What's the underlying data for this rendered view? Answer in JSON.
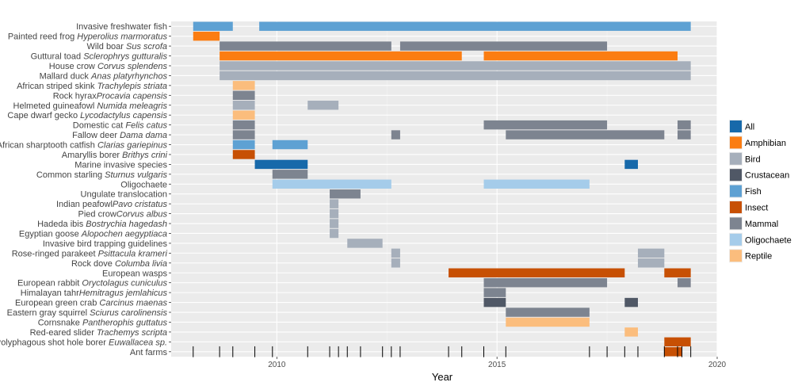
{
  "chart_data": {
    "type": "gantt",
    "xlabel": "Year",
    "xticks": [
      2010,
      2015,
      2020
    ],
    "xlim": [
      2007.6,
      2020
    ],
    "grid": true,
    "legend_position": "right",
    "colors": {
      "All": "#1769aa",
      "Amphibian": "#fb7d12",
      "Bird": "#a6afbb",
      "Crustacean": "#505866",
      "Fish": "#5ea1d3",
      "Insect": "#c75004",
      "Mammal": "#7d8490",
      "Oligochaete": "#a5ccea",
      "Reptile": "#fbbd7d"
    },
    "categories": [
      {
        "label": "Invasive freshwater fish",
        "prefix": "Invasive freshwater fish",
        "italic": ""
      },
      {
        "label": "Painted reed frog Hyperolius marmoratus",
        "prefix": "Painted reed frog ",
        "italic": "Hyperolius marmoratus"
      },
      {
        "label": "Wild boar Sus scrofa",
        "prefix": "Wild boar ",
        "italic": "Sus scrofa"
      },
      {
        "label": "Guttural toad Sclerophrys gutturalis",
        "prefix": "Guttural toad ",
        "italic": "Sclerophrys gutturalis"
      },
      {
        "label": "House crow Corvus splendens",
        "prefix": "House crow ",
        "italic": "Corvus splendens"
      },
      {
        "label": "Mallard duck Anas platyrhynchos",
        "prefix": "Mallard duck ",
        "italic": "Anas platyrhynchos"
      },
      {
        "label": "African striped skink Trachylepis striata",
        "prefix": "African striped skink ",
        "italic": "Trachylepis striata"
      },
      {
        "label": "Rock hyraxProcavia capensis",
        "prefix": "Rock hyrax",
        "italic": "Procavia capensis"
      },
      {
        "label": "Helmeted guineafowl Numida meleagris",
        "prefix": "Helmeted guineafowl ",
        "italic": "Numida meleagris"
      },
      {
        "label": "Cape dwarf gecko Lycodactylus capensis",
        "prefix": "Cape dwarf gecko ",
        "italic": "Lycodactylus capensis"
      },
      {
        "label": "Domestic cat Felis catus",
        "prefix": "Domestic cat ",
        "italic": "Felis catus"
      },
      {
        "label": "Fallow deer Dama dama",
        "prefix": "Fallow deer ",
        "italic": "Dama dama"
      },
      {
        "label": "African sharptooth catfish Clarias gariepinus",
        "prefix": "African sharptooth catfish ",
        "italic": "Clarias gariepinus"
      },
      {
        "label": "Amaryllis borer Brithys crini",
        "prefix": "Amaryllis borer ",
        "italic": "Brithys crini"
      },
      {
        "label": "Marine invasive species",
        "prefix": "Marine invasive species",
        "italic": ""
      },
      {
        "label": "Common starling Sturnus vulgaris",
        "prefix": "Common starling ",
        "italic": "Sturnus vulgaris"
      },
      {
        "label": "Oligochaete",
        "prefix": "Oligochaete",
        "italic": ""
      },
      {
        "label": "Ungulate translocation",
        "prefix": "Ungulate translocation",
        "italic": ""
      },
      {
        "label": "Indian peafowlPavo cristatus",
        "prefix": "Indian peafowl",
        "italic": "Pavo cristatus"
      },
      {
        "label": "Pied crowCorvus albus",
        "prefix": "Pied crow",
        "italic": "Corvus albus"
      },
      {
        "label": "Hadeda ibis Bostrychia hagedash",
        "prefix": "Hadeda ibis ",
        "italic": "Bostrychia hagedash"
      },
      {
        "label": "Egyptian goose Alopochen aegyptiaca",
        "prefix": "Egyptian goose ",
        "italic": "Alopochen aegyptiaca"
      },
      {
        "label": "Invasive bird trapping guidelines",
        "prefix": "Invasive bird trapping guidelines",
        "italic": ""
      },
      {
        "label": "Rose-ringed parakeet Psittacula krameri",
        "prefix": "Rose-ringed parakeet ",
        "italic": "Psittacula krameri"
      },
      {
        "label": "Rock dove Columba livia",
        "prefix": "Rock dove ",
        "italic": "Columba livia"
      },
      {
        "label": "European wasps",
        "prefix": "European wasps",
        "italic": ""
      },
      {
        "label": "European rabbit Oryctolagus cuniculus",
        "prefix": "European rabbit ",
        "italic": "Oryctolagus cuniculus"
      },
      {
        "label": "Himalayan tahrHemitragus jemlahicus",
        "prefix": "Himalayan tahr",
        "italic": "Hemitragus jemlahicus"
      },
      {
        "label": "European green crab Carcinus maenas",
        "prefix": "European green crab ",
        "italic": "Carcinus maenas"
      },
      {
        "label": "Eastern gray squirrel Sciurus carolinensis",
        "prefix": "Eastern gray squirrel ",
        "italic": "Sciurus carolinensis"
      },
      {
        "label": "Cornsnake Pantherophis guttatus",
        "prefix": "Cornsnake ",
        "italic": "Pantherophis guttatus"
      },
      {
        "label": "Red-eared slider Trachemys scripta",
        "prefix": "Red-eared slider ",
        "italic": "Trachemys scripta"
      },
      {
        "label": "Polyphagous shot hole borer Euwallacea sp.",
        "prefix": "Polyphagous shot hole borer ",
        "italic": "Euwallacea sp."
      },
      {
        "label": "Ant farms",
        "prefix": "Ant farms",
        "italic": ""
      }
    ],
    "bars": [
      {
        "row": 0,
        "start": 2008.1,
        "end": 2009.0,
        "group": "Fish"
      },
      {
        "row": 0,
        "start": 2009.6,
        "end": 2019.4,
        "group": "Fish"
      },
      {
        "row": 1,
        "start": 2008.1,
        "end": 2008.7,
        "group": "Amphibian"
      },
      {
        "row": 2,
        "start": 2008.7,
        "end": 2012.6,
        "group": "Mammal"
      },
      {
        "row": 2,
        "start": 2012.8,
        "end": 2017.5,
        "group": "Mammal"
      },
      {
        "row": 3,
        "start": 2008.7,
        "end": 2014.2,
        "group": "Amphibian"
      },
      {
        "row": 3,
        "start": 2014.7,
        "end": 2019.1,
        "group": "Amphibian"
      },
      {
        "row": 4,
        "start": 2008.7,
        "end": 2019.4,
        "group": "Bird"
      },
      {
        "row": 5,
        "start": 2008.7,
        "end": 2019.4,
        "group": "Bird"
      },
      {
        "row": 6,
        "start": 2009.0,
        "end": 2009.5,
        "group": "Reptile"
      },
      {
        "row": 7,
        "start": 2009.0,
        "end": 2009.5,
        "group": "Mammal"
      },
      {
        "row": 8,
        "start": 2009.0,
        "end": 2009.5,
        "group": "Bird"
      },
      {
        "row": 8,
        "start": 2010.7,
        "end": 2011.4,
        "group": "Bird"
      },
      {
        "row": 9,
        "start": 2009.0,
        "end": 2009.5,
        "group": "Reptile"
      },
      {
        "row": 10,
        "start": 2009.0,
        "end": 2009.5,
        "group": "Mammal"
      },
      {
        "row": 10,
        "start": 2014.7,
        "end": 2017.5,
        "group": "Mammal"
      },
      {
        "row": 10,
        "start": 2019.1,
        "end": 2019.4,
        "group": "Mammal"
      },
      {
        "row": 11,
        "start": 2009.0,
        "end": 2009.5,
        "group": "Mammal"
      },
      {
        "row": 11,
        "start": 2012.6,
        "end": 2012.8,
        "group": "Mammal"
      },
      {
        "row": 11,
        "start": 2015.2,
        "end": 2018.8,
        "group": "Mammal"
      },
      {
        "row": 11,
        "start": 2019.1,
        "end": 2019.4,
        "group": "Mammal"
      },
      {
        "row": 12,
        "start": 2009.0,
        "end": 2009.5,
        "group": "Fish"
      },
      {
        "row": 12,
        "start": 2009.9,
        "end": 2010.7,
        "group": "Fish"
      },
      {
        "row": 13,
        "start": 2009.0,
        "end": 2009.5,
        "group": "Insect"
      },
      {
        "row": 14,
        "start": 2009.5,
        "end": 2010.7,
        "group": "All"
      },
      {
        "row": 14,
        "start": 2017.9,
        "end": 2018.2,
        "group": "All"
      },
      {
        "row": 15,
        "start": 2009.9,
        "end": 2010.7,
        "group": "Mammal"
      },
      {
        "row": 16,
        "start": 2009.9,
        "end": 2012.6,
        "group": "Oligochaete"
      },
      {
        "row": 16,
        "start": 2014.7,
        "end": 2017.1,
        "group": "Oligochaete"
      },
      {
        "row": 17,
        "start": 2011.2,
        "end": 2011.9,
        "group": "Mammal"
      },
      {
        "row": 18,
        "start": 2011.2,
        "end": 2011.4,
        "group": "Bird"
      },
      {
        "row": 19,
        "start": 2011.2,
        "end": 2011.4,
        "group": "Bird"
      },
      {
        "row": 20,
        "start": 2011.2,
        "end": 2011.4,
        "group": "Bird"
      },
      {
        "row": 21,
        "start": 2011.2,
        "end": 2011.4,
        "group": "Bird"
      },
      {
        "row": 22,
        "start": 2011.6,
        "end": 2012.4,
        "group": "Bird"
      },
      {
        "row": 23,
        "start": 2012.6,
        "end": 2012.8,
        "group": "Bird"
      },
      {
        "row": 23,
        "start": 2018.2,
        "end": 2018.8,
        "group": "Bird"
      },
      {
        "row": 24,
        "start": 2012.6,
        "end": 2012.8,
        "group": "Bird"
      },
      {
        "row": 24,
        "start": 2018.2,
        "end": 2018.8,
        "group": "Bird"
      },
      {
        "row": 25,
        "start": 2013.9,
        "end": 2017.9,
        "group": "Insect"
      },
      {
        "row": 25,
        "start": 2018.8,
        "end": 2019.4,
        "group": "Insect"
      },
      {
        "row": 26,
        "start": 2014.7,
        "end": 2017.5,
        "group": "Mammal"
      },
      {
        "row": 26,
        "start": 2019.1,
        "end": 2019.4,
        "group": "Mammal"
      },
      {
        "row": 27,
        "start": 2014.7,
        "end": 2015.2,
        "group": "Mammal"
      },
      {
        "row": 28,
        "start": 2014.7,
        "end": 2015.2,
        "group": "Crustacean"
      },
      {
        "row": 28,
        "start": 2017.9,
        "end": 2018.2,
        "group": "Crustacean"
      },
      {
        "row": 29,
        "start": 2015.2,
        "end": 2017.1,
        "group": "Mammal"
      },
      {
        "row": 30,
        "start": 2015.2,
        "end": 2017.1,
        "group": "Reptile"
      },
      {
        "row": 31,
        "start": 2017.9,
        "end": 2018.2,
        "group": "Reptile"
      },
      {
        "row": 32,
        "start": 2018.8,
        "end": 2019.4,
        "group": "Insect"
      },
      {
        "row": 33,
        "start": 2018.8,
        "end": 2019.2,
        "group": "Insect"
      }
    ],
    "ticks_row": 33,
    "tick_years": [
      2008.1,
      2008.7,
      2009.0,
      2009.5,
      2009.9,
      2010.7,
      2011.2,
      2011.4,
      2011.6,
      2011.9,
      2012.4,
      2012.6,
      2012.8,
      2013.9,
      2014.2,
      2014.7,
      2015.2,
      2017.1,
      2017.5,
      2017.9,
      2018.2,
      2018.8,
      2019.1,
      2019.2,
      2019.4
    ]
  }
}
